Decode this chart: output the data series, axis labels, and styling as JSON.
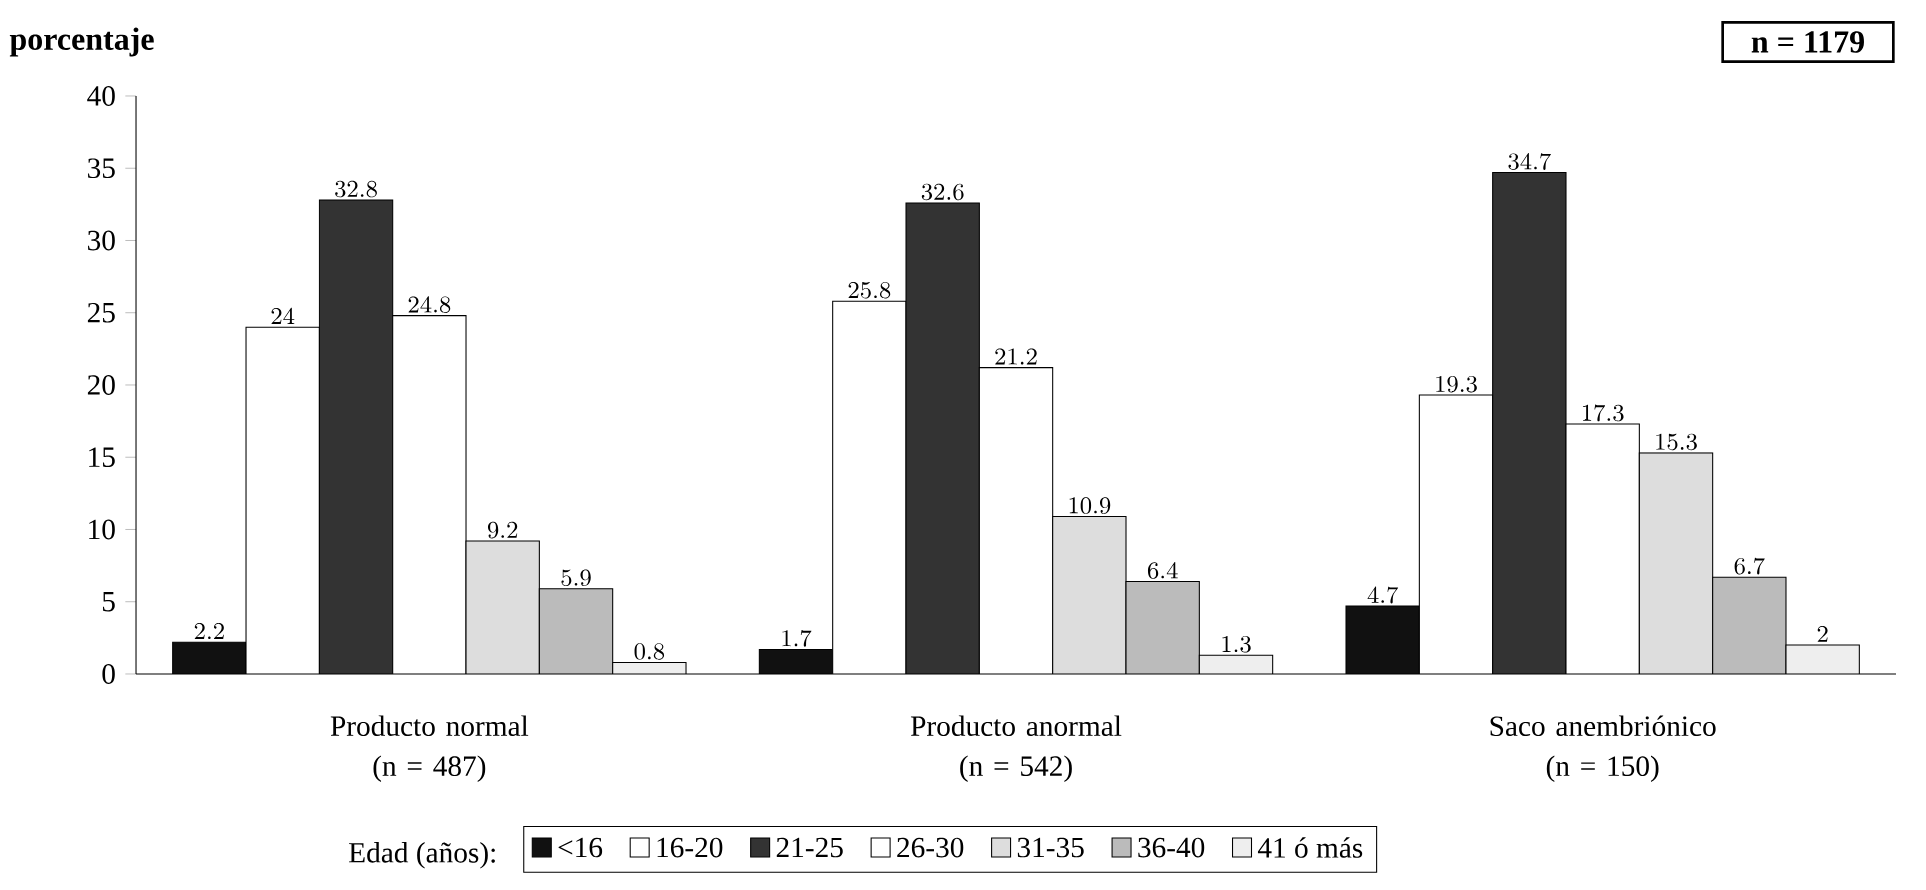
{
  "chart_data": {
    "type": "bar",
    "ylabel": "porcentaje",
    "categories": [
      "Producto normal (n = 487)",
      "Producto anormal (n = 542)",
      "Saco anembriónico (n = 150)"
    ],
    "series": [
      {
        "name": "<16",
        "color": "#111111",
        "values": [
          2.2,
          1.7,
          4.7
        ]
      },
      {
        "name": "16-20",
        "color": "#ffffff",
        "values": [
          24,
          25.8,
          19.3
        ]
      },
      {
        "name": "21-25",
        "color": "#333333",
        "values": [
          32.8,
          32.6,
          34.7
        ]
      },
      {
        "name": "26-30",
        "color": "#ffffff",
        "values": [
          24.8,
          21.2,
          17.3
        ]
      },
      {
        "name": "31-35",
        "color": "#dddddd",
        "values": [
          9.2,
          10.9,
          15.3
        ]
      },
      {
        "name": "36-40",
        "color": "#bbbbbb",
        "values": [
          5.9,
          6.4,
          6.7
        ]
      },
      {
        "name": "41 ó más",
        "color": "#eeeeee",
        "values": [
          0.8,
          1.3,
          2
        ]
      }
    ],
    "legend_title": "Edad (años):",
    "legend": "bottom",
    "ylim": [
      0,
      40
    ],
    "yticks": [
      0,
      5,
      10,
      15,
      20,
      25,
      30,
      35,
      40
    ],
    "data_labels": true,
    "annotations": [
      "n = 1179"
    ]
  }
}
